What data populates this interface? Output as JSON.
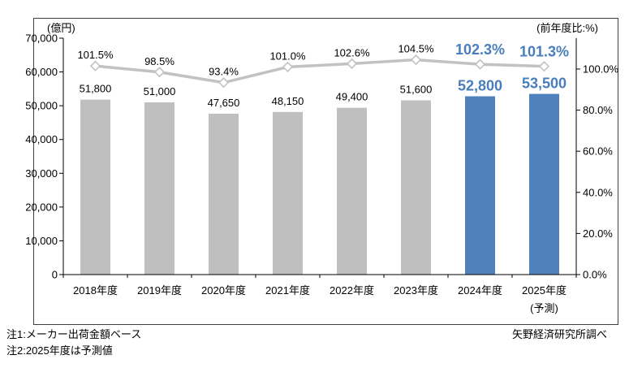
{
  "chart": {
    "left_unit_label": "(億円)",
    "right_unit_label": "(前年度比:%)"
  },
  "notes": {
    "note1": "注1:メーカー出荷金額ベース",
    "note2": "注2:2025年度は予測値",
    "source": "矢野経済研究所調べ"
  },
  "chart_data": {
    "type": "bar+line",
    "title": "",
    "categories": [
      "2018年度",
      "2019年度",
      "2020年度",
      "2021年度",
      "2022年度",
      "2023年度",
      "2024年度",
      "2025年度"
    ],
    "category_sublabels": [
      "",
      "",
      "",
      "",
      "",
      "",
      "",
      "(予測)"
    ],
    "series": [
      {
        "name": "市場規模(億円)",
        "type": "bar",
        "axis": "left",
        "values": [
          51800,
          51000,
          47650,
          48150,
          49400,
          51600,
          52800,
          53500
        ],
        "labels": [
          "51,800",
          "51,000",
          "47,650",
          "48,150",
          "49,400",
          "51,600",
          "52,800",
          "53,500"
        ]
      },
      {
        "name": "前年度比(%)",
        "type": "line",
        "axis": "right",
        "values": [
          101.5,
          98.5,
          93.4,
          101.0,
          102.6,
          104.5,
          102.3,
          101.3
        ],
        "labels": [
          "101.5%",
          "98.5%",
          "93.4%",
          "101.0%",
          "102.6%",
          "104.5%",
          "102.3%",
          "101.3%"
        ]
      }
    ],
    "highlight_start_index": 6,
    "left_axis": {
      "label": "(億円)",
      "min": 0,
      "max": 70000,
      "tick_step": 10000,
      "tick_labels": [
        "0",
        "10,000",
        "20,000",
        "30,000",
        "40,000",
        "50,000",
        "60,000",
        "70,000"
      ]
    },
    "right_axis": {
      "label": "(前年度比:%)",
      "min": 0,
      "implied_max": 115,
      "tick_step": 20,
      "tick_labels": [
        "0.0%",
        "20.0%",
        "40.0%",
        "60.0%",
        "80.0%",
        "100.0%"
      ]
    },
    "grid": "off",
    "legend": "none",
    "colors": {
      "bar": "#BFBFBF",
      "bar_highlight": "#4F81BD",
      "line": "#C2C2C2",
      "marker_fill": "#FFFFFF",
      "marker_stroke": "#C2C2C2",
      "label_text": "#000000",
      "label_highlight_text": "#4A7EBB",
      "axis": "#000000",
      "border": "#404040"
    }
  }
}
